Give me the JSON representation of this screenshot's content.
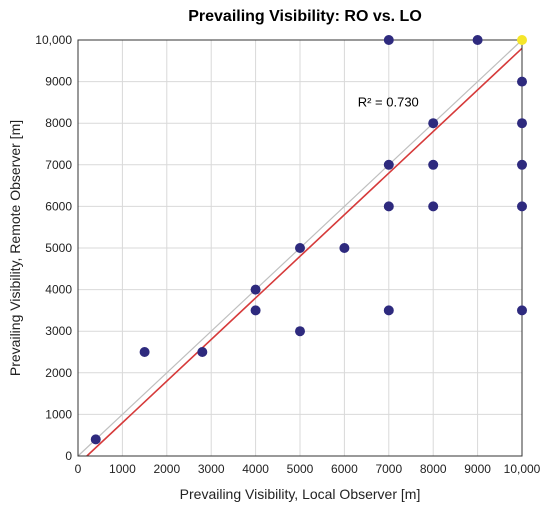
{
  "chart_data": {
    "type": "scatter",
    "title": "Prevailing Visibility: RO vs. LO",
    "xlabel": "Prevailing Visibility, Local Observer [m]",
    "ylabel": "Prevailing Visibility, Remote Observer [m]",
    "xlim": [
      0,
      10000
    ],
    "ylim": [
      0,
      10000
    ],
    "xticks": [
      0,
      1000,
      2000,
      3000,
      4000,
      5000,
      6000,
      7000,
      8000,
      9000,
      10000
    ],
    "xtick_labels": [
      "0",
      "1000",
      "2000",
      "3000",
      "4000",
      "5000",
      "6000",
      "7000",
      "8000",
      "9000",
      "10,000"
    ],
    "yticks": [
      0,
      1000,
      2000,
      3000,
      4000,
      5000,
      6000,
      7000,
      8000,
      9000,
      10000
    ],
    "ytick_labels": [
      "0",
      "1000",
      "2000",
      "3000",
      "4000",
      "5000",
      "6000",
      "7000",
      "8000",
      "9000",
      "10,000"
    ],
    "grid": true,
    "annotation": "R² = 0.730",
    "annotation_pos": [
      6300,
      8400
    ],
    "point_color": "#2e2a7e",
    "highlight_color": "#f5e62a",
    "fit_line": {
      "color": "#d63a3a",
      "x": [
        200,
        10000
      ],
      "y": [
        0,
        9800
      ]
    },
    "identity_line": {
      "color": "#bfbfbf",
      "x": [
        0,
        10000
      ],
      "y": [
        0,
        10000
      ]
    },
    "points": [
      {
        "x": 400,
        "y": 400
      },
      {
        "x": 1500,
        "y": 2500
      },
      {
        "x": 2800,
        "y": 2500
      },
      {
        "x": 4000,
        "y": 4000
      },
      {
        "x": 4000,
        "y": 3500
      },
      {
        "x": 5000,
        "y": 5000
      },
      {
        "x": 5000,
        "y": 3000
      },
      {
        "x": 6000,
        "y": 5000
      },
      {
        "x": 7000,
        "y": 10000
      },
      {
        "x": 7000,
        "y": 7000
      },
      {
        "x": 7000,
        "y": 6000
      },
      {
        "x": 7000,
        "y": 3500
      },
      {
        "x": 8000,
        "y": 8000
      },
      {
        "x": 8000,
        "y": 7000
      },
      {
        "x": 8000,
        "y": 6000
      },
      {
        "x": 9000,
        "y": 10000
      },
      {
        "x": 10000,
        "y": 10000,
        "highlight": true
      },
      {
        "x": 10000,
        "y": 9000
      },
      {
        "x": 10000,
        "y": 8000
      },
      {
        "x": 10000,
        "y": 7000
      },
      {
        "x": 10000,
        "y": 6000
      },
      {
        "x": 10000,
        "y": 3500
      }
    ]
  }
}
